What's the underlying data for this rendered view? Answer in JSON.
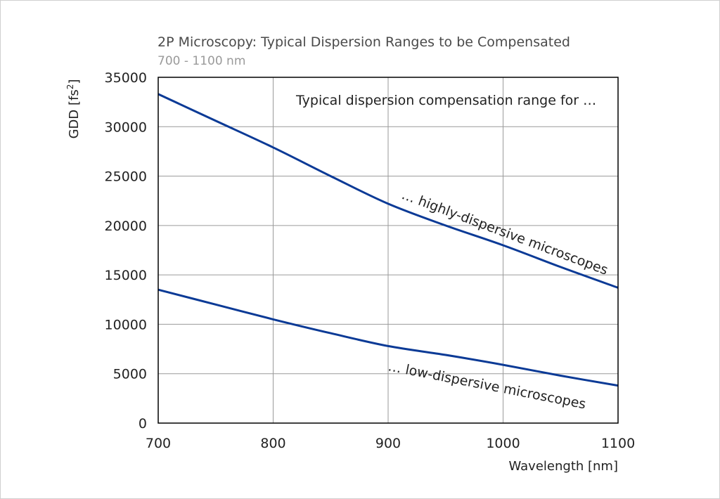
{
  "chart_data": {
    "type": "line",
    "title": "2P Microscopy: Typical Dispersion Ranges to be Compensated",
    "subtitle": "700 - 1100 nm",
    "xlabel": "Wavelength [nm]",
    "ylabel_main": "GDD [fs",
    "ylabel_sup": "2",
    "ylabel_end": "]",
    "xlim": [
      700,
      1100
    ],
    "ylim": [
      0,
      35000
    ],
    "x_ticks": [
      "700",
      "800",
      "900",
      "1000",
      "1100"
    ],
    "y_ticks": [
      "0",
      "5000",
      "10000",
      "15000",
      "20000",
      "25000",
      "30000",
      "35000"
    ],
    "grid": true,
    "series": [
      {
        "name": "… highly-dispersive microscopes",
        "color": "#0b3a96",
        "x": [
          700,
          750,
          800,
          850,
          900,
          950,
          1000,
          1050,
          1100
        ],
        "y": [
          33300,
          30600,
          27900,
          25000,
          22200,
          20000,
          18000,
          15800,
          13700
        ]
      },
      {
        "name": "… low-dispersive microscopes",
        "color": "#0b3a96",
        "x": [
          700,
          750,
          800,
          850,
          900,
          950,
          1000,
          1050,
          1100
        ],
        "y": [
          13500,
          12000,
          10500,
          9100,
          7800,
          6900,
          5900,
          4800,
          3800
        ]
      }
    ],
    "annotations": {
      "header": "Typical dispersion compensation range for …",
      "high": "… highly-dispersive microscopes",
      "low": "… low-dispersive microscopes"
    }
  }
}
